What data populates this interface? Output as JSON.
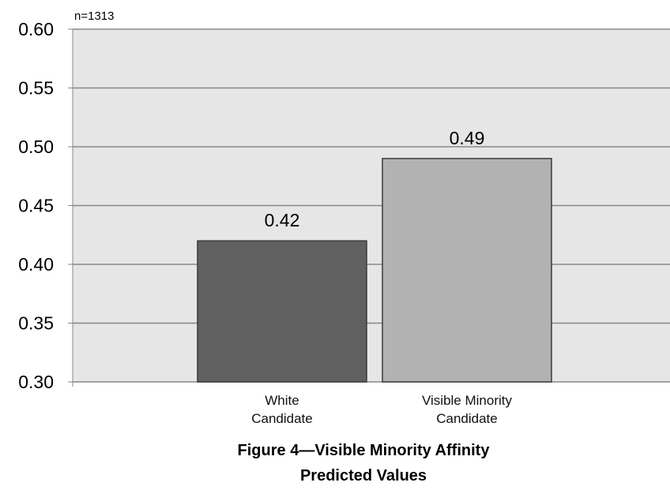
{
  "chart_data": {
    "type": "bar",
    "note": "n=1313",
    "title_lines": [
      "Figure 4—Visible Minority Affinity",
      "Predicted Values"
    ],
    "categories": [
      [
        "White",
        "Candidate"
      ],
      [
        "Visible Minority",
        "Candidate"
      ]
    ],
    "values": [
      0.42,
      0.49
    ],
    "value_labels": [
      "0.42",
      "0.49"
    ],
    "bar_colors": [
      "#606060",
      "#b2b2b2"
    ],
    "ylim": [
      0.3,
      0.6
    ],
    "yticks": [
      0.3,
      0.35,
      0.4,
      0.45,
      0.5,
      0.55,
      0.6
    ],
    "ytick_labels": [
      "0.30",
      "0.35",
      "0.40",
      "0.45",
      "0.50",
      "0.55",
      "0.60"
    ],
    "grid": true,
    "plot_background": "#e6e6e6",
    "gridline_color": "#888888"
  }
}
